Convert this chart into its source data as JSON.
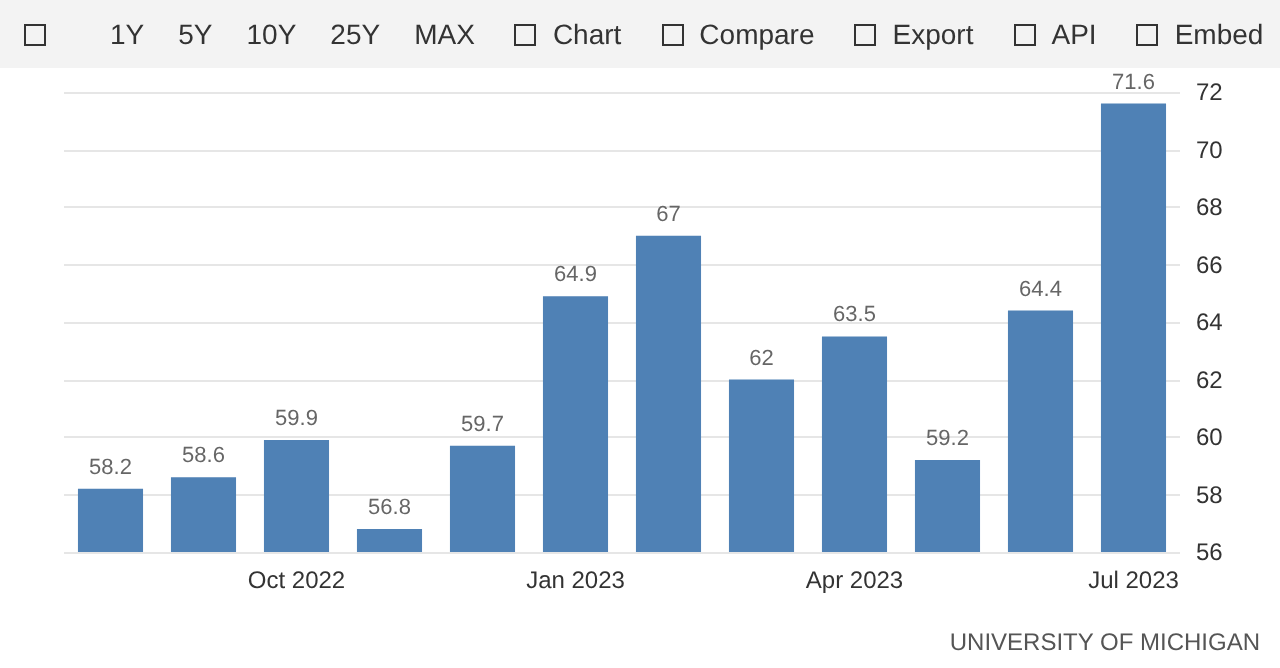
{
  "chart_data": {
    "type": "bar",
    "categories": [
      null,
      null,
      "Oct 2022",
      null,
      null,
      "Jan 2023",
      null,
      null,
      "Apr 2023",
      null,
      null,
      "Jul 2023"
    ],
    "values": [
      58.2,
      58.6,
      59.9,
      56.8,
      59.7,
      64.9,
      67,
      62,
      63.5,
      59.2,
      64.4,
      71.6
    ],
    "color": "#4f81b5",
    "ylim": [
      56,
      72
    ],
    "yticks": [
      56,
      58,
      60,
      62,
      64,
      66,
      68,
      70,
      72
    ],
    "grid": "y",
    "data_labels": true,
    "annotations": [
      "1Y",
      "5Y",
      "10Y",
      "25Y",
      "MAX",
      "Chart",
      "Compare",
      "Export",
      "API",
      "Embed",
      "UNIVERSITY OF MICHIGAN"
    ]
  }
}
